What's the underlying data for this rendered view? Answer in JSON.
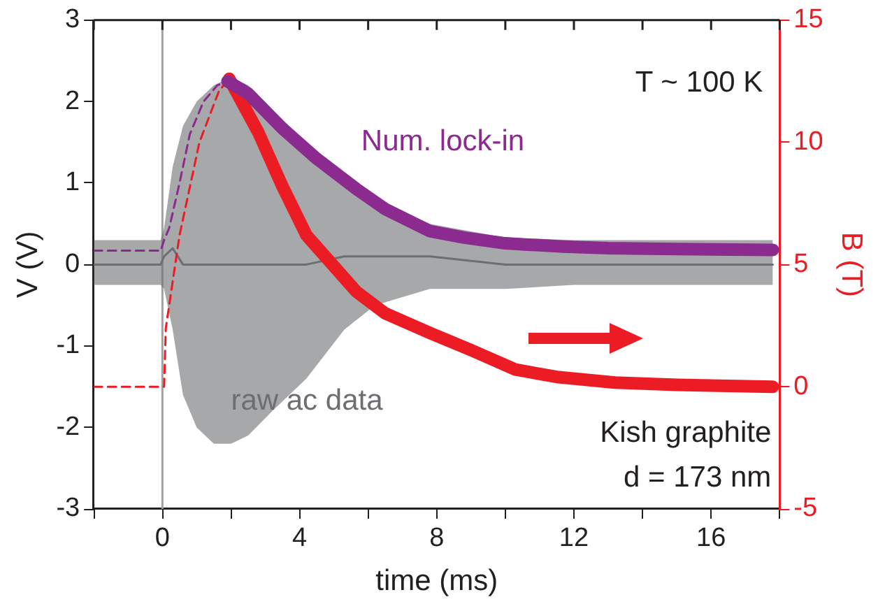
{
  "chart_data": {
    "type": "line",
    "xlabel": "time (ms)",
    "ylabel": "V (V)",
    "y2label": "B (T)",
    "xlim": [
      -2,
      18
    ],
    "xticks": [
      {
        "value": -2,
        "label": null
      },
      0,
      {
        "value": 2,
        "label": null
      },
      4,
      {
        "value": 6,
        "label": null
      },
      8,
      {
        "value": 10,
        "label": null
      },
      12,
      {
        "value": 14,
        "label": null
      },
      16,
      {
        "value": 18,
        "label": null
      }
    ],
    "ylim": [
      -3,
      3
    ],
    "yticks": [
      -3,
      -2,
      -1,
      0,
      1,
      2,
      3
    ],
    "y2lim": [
      -5,
      15
    ],
    "y2ticks": [
      -5,
      0,
      5,
      10,
      15
    ],
    "grid": false,
    "legend": false,
    "ref_lines": [
      {
        "axis": "x",
        "value": 0,
        "color": "#a0a0a0"
      }
    ],
    "annotations": [
      "T ~ 100 K",
      "Kish graphite",
      "d = 173 nm"
    ],
    "series": [
      {
        "name": "raw ac data",
        "type": "line",
        "color": "#6d6e71",
        "x": [
          -2,
          -0.05,
          0.05,
          0.3,
          0.6,
          1,
          1.5,
          2,
          2.5,
          3.2,
          4.2,
          5.3,
          6.2,
          7.8,
          10,
          12,
          15,
          17.8
        ],
        "values": [
          0,
          0,
          0.1,
          0.2,
          0,
          0,
          0,
          0,
          0,
          0,
          0,
          0.1,
          0.1,
          0.1,
          0,
          0,
          0,
          0
        ],
        "upper": [
          0.3,
          0.3,
          0.45,
          1.2,
          1.7,
          2.0,
          2.2,
          2.3,
          2.2,
          1.9,
          1.5,
          1.05,
          0.8,
          0.5,
          0.33,
          0.3,
          0.3,
          0.3
        ],
        "lower": [
          -0.25,
          -0.25,
          -0.3,
          -0.8,
          -1.6,
          -2.0,
          -2.2,
          -2.2,
          -2.1,
          -1.8,
          -1.4,
          -0.8,
          -0.5,
          -0.3,
          -0.3,
          -0.25,
          -0.25,
          -0.25
        ]
      },
      {
        "type": "line",
        "line_style": "dashed",
        "color": "#8b2a8f",
        "x": [
          -2,
          -0.05,
          0.05,
          0.2,
          0.5,
          0.8,
          1.2,
          1.6,
          1.9
        ],
        "values": [
          0.17,
          0.17,
          0.3,
          0.45,
          1.0,
          1.6,
          2.0,
          2.2,
          2.25
        ]
      },
      {
        "type": "line",
        "line_style": "dashed",
        "color": "#ec1c24",
        "axis": "y2",
        "x": [
          -2,
          0.05,
          0.1,
          0.5,
          1.08,
          1.65,
          1.95
        ],
        "values": [
          0,
          0,
          2.4,
          6.2,
          10,
          12.1,
          12.6
        ]
      },
      {
        "type": "line",
        "line_style": "solid",
        "color": "#ec1c24",
        "axis": "y2",
        "x": [
          1.95,
          2.8,
          3.5,
          4.2,
          5.65,
          6.5,
          7.8,
          9,
          10.3,
          11.5,
          13.2,
          15,
          17.8
        ],
        "values": [
          12.6,
          10.4,
          8.2,
          6.2,
          3.9,
          3.0,
          2.2,
          1.5,
          0.7,
          0.4,
          0.17,
          0.08,
          0
        ]
      },
      {
        "name": "Num. lock-in",
        "type": "line",
        "line_style": "solid",
        "color": "#8b2a8f",
        "x": [
          1.9,
          2.5,
          3.5,
          4.5,
          5.65,
          6.5,
          7.8,
          8.8,
          10,
          11.7,
          13,
          15,
          17.8
        ],
        "values": [
          2.25,
          2.1,
          1.67,
          1.3,
          0.93,
          0.68,
          0.41,
          0.33,
          0.26,
          0.22,
          0.2,
          0.19,
          0.18
        ]
      }
    ]
  }
}
